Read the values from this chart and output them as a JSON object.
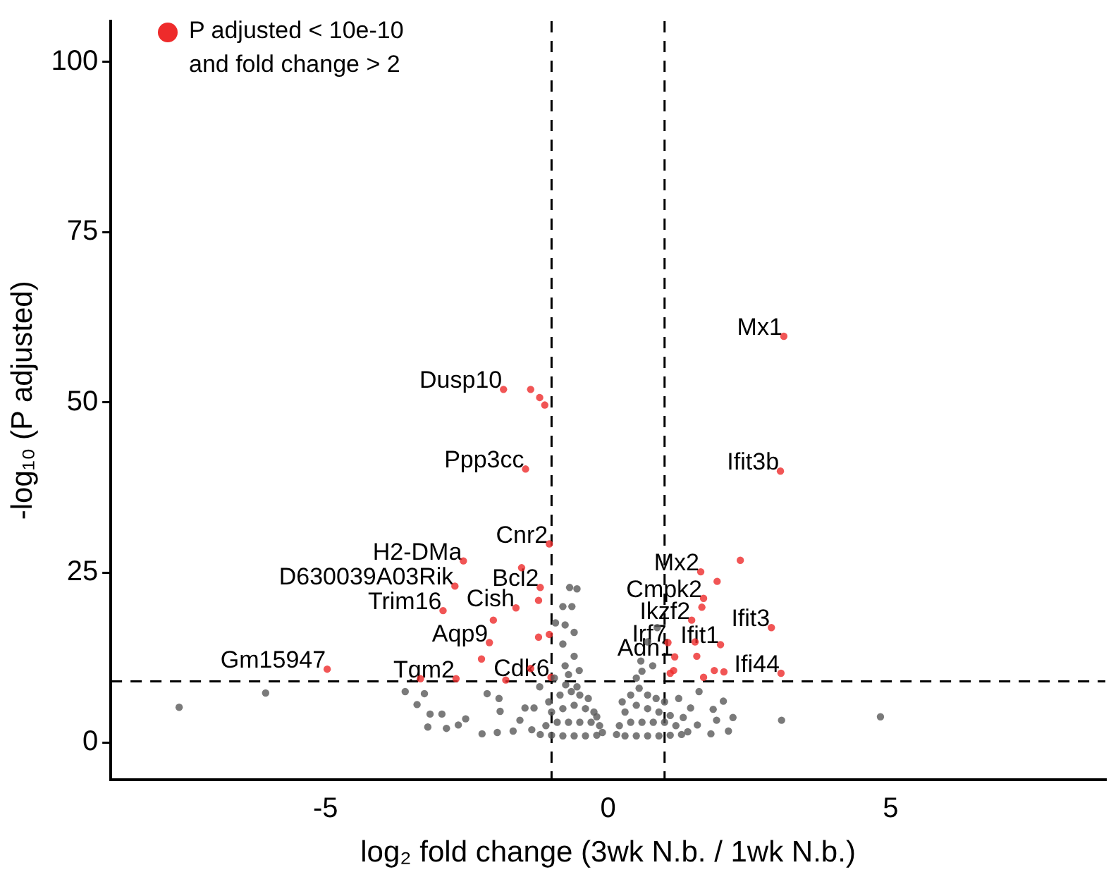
{
  "chart_data": {
    "type": "scatter",
    "xlabel": "log₂ fold change (3wk N.b. / 1wk N.b.)",
    "ylabel": "-log₁₀ (P adjusted)",
    "xlim": [
      -8.8,
      8.8
    ],
    "xticks": [
      -5,
      0,
      5
    ],
    "ylim": [
      -5.4,
      106
    ],
    "yticks": [
      0,
      25,
      50,
      75,
      100
    ],
    "grid": false,
    "legend": "top left",
    "marker": "circle",
    "series": [
      {
        "color": "#595959",
        "x": [
          -7.59,
          -6.06,
          4.82,
          3.07,
          -3.59,
          -3.25,
          -3.38,
          -3.15,
          -2.94,
          -3.19,
          -2.86,
          -2.65,
          -2.52,
          -2.23,
          -2.14,
          -1.93,
          -1.96,
          -1.91,
          -1.68,
          -1.56,
          -1.47,
          -1.31,
          -1.21,
          -1.35,
          -0.68,
          -0.55,
          -0.8,
          -0.64,
          -0.93,
          -0.76,
          -0.6,
          -0.8,
          -0.6,
          -0.51,
          -0.76,
          0.87,
          0.7,
          0.58,
          0.79,
          1.61,
          1.86,
          2.04,
          1.92,
          2.21,
          2.13,
          1.82,
          1.58,
          1.41,
          1.46,
          1.33,
          1.25,
          -1.2,
          -1.0,
          -0.8,
          -0.6,
          -0.4,
          -0.2,
          -0.1,
          -1.1,
          -0.9,
          -0.7,
          -0.5,
          -0.3,
          -0.15,
          -1.0,
          -0.8,
          -0.6,
          -0.4,
          -0.25,
          -0.85,
          -0.65,
          -0.5,
          -0.35,
          -0.75,
          -0.55,
          -0.95,
          -0.7,
          -1.05,
          -0.2,
          0.15,
          0.3,
          0.5,
          0.7,
          0.9,
          1.1,
          1.3,
          0.2,
          0.4,
          0.6,
          0.8,
          1.0,
          1.2,
          0.3,
          0.5,
          0.7,
          0.9,
          1.1,
          0.4,
          0.55,
          0.7,
          0.85,
          0.5,
          0.6,
          1.0,
          0.25
        ],
        "values": [
          5.2,
          7.3,
          3.8,
          3.3,
          7.5,
          7.2,
          5.6,
          4.2,
          4.2,
          2.3,
          2.1,
          2.6,
          3.5,
          1.3,
          7.2,
          6.5,
          1.5,
          4.6,
          1.7,
          3.3,
          5.1,
          5.1,
          8.2,
          1.9,
          22.8,
          22.6,
          20.0,
          20.0,
          17.6,
          17.3,
          16.2,
          14.5,
          12.7,
          10.6,
          11.3,
          16.9,
          14.8,
          12.0,
          11.3,
          7.5,
          4.9,
          6.1,
          3.3,
          3.7,
          1.7,
          1.3,
          2.6,
          1.6,
          5.1,
          3.7,
          6.5,
          1.2,
          1.1,
          1.0,
          1.0,
          1.0,
          1.1,
          1.5,
          2.5,
          3,
          3,
          3,
          3,
          2.5,
          4.5,
          5,
          5.5,
          5,
          4.5,
          7,
          7.5,
          7,
          6.5,
          8.5,
          8.2,
          9.5,
          10,
          6,
          3.8,
          1.2,
          1.0,
          1.0,
          1.0,
          1.0,
          1.1,
          1.2,
          2.5,
          3,
          3,
          3,
          3,
          2.5,
          4.5,
          5.5,
          5,
          4.5,
          4,
          7,
          8,
          7,
          6.5,
          9.5,
          10.5,
          6,
          6
        ]
      },
      {
        "name": "P adjusted < 10e-10 and fold change > 2",
        "color": "#ee2b2b",
        "x": [
          -1.85,
          -1.37,
          -1.21,
          -1.12,
          -1.46,
          -1.04,
          -2.56,
          -2.71,
          -1.53,
          -1.2,
          -2.92,
          -1.63,
          -1.23,
          -2.03,
          -2.1,
          -1.23,
          -1.04,
          -2.24,
          -1.37,
          -1.01,
          -4.97,
          -3.32,
          -2.69,
          -1.81,
          3.11,
          3.05,
          2.34,
          1.64,
          1.93,
          1.69,
          1.66,
          2.89,
          1.48,
          1.06,
          1.99,
          1.54,
          1.57,
          1.18,
          1.16,
          1.1,
          1.88,
          2.05,
          1.69,
          3.06
        ],
        "values": [
          51.9,
          51.9,
          50.7,
          49.6,
          40.2,
          29.2,
          26.7,
          23.0,
          25.7,
          22.8,
          19.4,
          19.8,
          20.9,
          18.0,
          14.7,
          15.5,
          15.9,
          12.3,
          10.9,
          9.6,
          10.8,
          9.4,
          9.4,
          9.2,
          59.7,
          39.9,
          26.8,
          25.1,
          23.7,
          21.2,
          19.9,
          16.9,
          18.0,
          14.7,
          14.4,
          14.8,
          12.7,
          12.6,
          10.6,
          10.2,
          10.6,
          10.4,
          9.6,
          10.2
        ]
      }
    ],
    "ref_lines": [
      {
        "axis": "x",
        "value": -1,
        "line_style": "dashed",
        "color": "#000000"
      },
      {
        "axis": "x",
        "value": 1,
        "line_style": "dashed",
        "color": "#000000"
      },
      {
        "axis": "y",
        "value": 9,
        "line_style": "dashed",
        "color": "#000000"
      }
    ],
    "annotations": [
      {
        "text": "Dusp10",
        "x": -1.85,
        "y": 51.9
      },
      {
        "text": "Ppp3cc",
        "x": -1.46,
        "y": 40.2
      },
      {
        "text": "Cnr2",
        "x": -1.04,
        "y": 29.2
      },
      {
        "text": "H2-DMa",
        "x": -2.56,
        "y": 26.7
      },
      {
        "text": "D630039A03Rik",
        "x": -2.71,
        "y": 23.0
      },
      {
        "text": "Bcl2",
        "x": -1.2,
        "y": 22.8
      },
      {
        "text": "Trim16",
        "x": -2.92,
        "y": 19.4
      },
      {
        "text": "Cish",
        "x": -1.63,
        "y": 19.8
      },
      {
        "text": "Aqp9",
        "x": -2.1,
        "y": 14.7
      },
      {
        "text": "Cdk6",
        "x": -1.01,
        "y": 9.6
      },
      {
        "text": "Gm15947",
        "x": -4.97,
        "y": 10.8
      },
      {
        "text": "Tgm2",
        "x": -2.69,
        "y": 9.4
      },
      {
        "text": "Mx1",
        "x": 3.11,
        "y": 59.7
      },
      {
        "text": "Ifit3b",
        "x": 3.05,
        "y": 39.9
      },
      {
        "text": "Mx2",
        "x": 1.64,
        "y": 25.1
      },
      {
        "text": "Cmpk2",
        "x": 1.69,
        "y": 21.2
      },
      {
        "text": "Ikzf2",
        "x": 1.48,
        "y": 18.0
      },
      {
        "text": "Ifit3",
        "x": 2.89,
        "y": 16.9
      },
      {
        "text": "Irf7",
        "x": 1.06,
        "y": 14.7
      },
      {
        "text": "Ifit1",
        "x": 1.99,
        "y": 14.4
      },
      {
        "text": "Adh1",
        "x": 1.18,
        "y": 12.6
      },
      {
        "text": "Ifi44",
        "x": 3.06,
        "y": 10.2
      }
    ]
  }
}
